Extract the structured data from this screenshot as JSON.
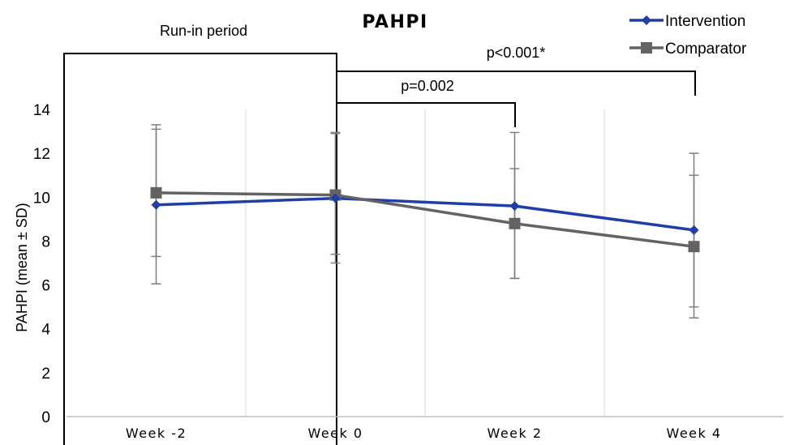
{
  "chart_data": {
    "type": "line",
    "title": "PAHPI",
    "xlabel": "",
    "ylabel": "PAHPI (mean ± SD)",
    "categories": [
      "Week -2",
      "Week 0",
      "Week 2",
      "Week 4"
    ],
    "ylim": [
      0,
      14
    ],
    "yticks": [
      0,
      2,
      4,
      6,
      8,
      10,
      12,
      14
    ],
    "grid": "vertical",
    "legend": "top-right",
    "series": [
      {
        "name": "Intervention",
        "color": "#1f3ea6",
        "marker": "diamond",
        "values": [
          9.65,
          9.95,
          9.6,
          8.5
        ],
        "sd_upper": [
          13.1,
          12.9,
          11.3,
          11.0
        ],
        "sd_lower": [
          7.3,
          7.4,
          6.3,
          5.0
        ]
      },
      {
        "name": "Comparator",
        "color": "#636363",
        "marker": "square",
        "values": [
          10.2,
          10.1,
          8.8,
          7.75
        ],
        "sd_upper": [
          13.3,
          12.95,
          12.95,
          12.0
        ],
        "sd_lower": [
          6.05,
          7.0,
          6.3,
          4.5
        ]
      }
    ],
    "annotations": {
      "run_in_label": "Run-in period",
      "p_week2": "p=0.002",
      "p_week4": "p<0.001*"
    }
  }
}
